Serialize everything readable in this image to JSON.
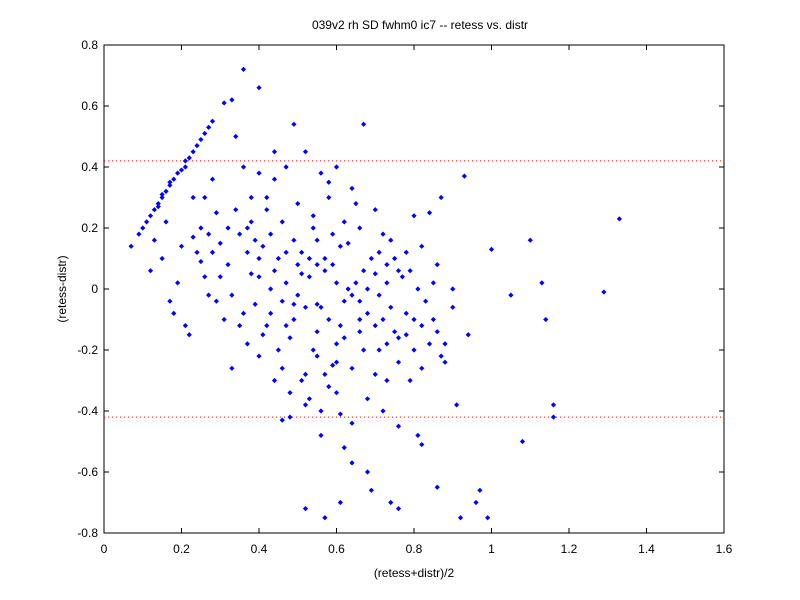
{
  "chart_data": {
    "type": "scatter",
    "title": "039v2 rh SD fwhm0 ic7 -- retess vs. distr",
    "xlabel": "(retess+distr)/2",
    "ylabel": "(retess-distr)",
    "xlim": [
      0,
      1.6
    ],
    "ylim": [
      -0.8,
      0.8
    ],
    "xticks": [
      0,
      0.2,
      0.4,
      0.6,
      0.8,
      1,
      1.2,
      1.4,
      1.6
    ],
    "yticks": [
      -0.8,
      -0.6,
      -0.4,
      -0.2,
      0,
      0.2,
      0.4,
      0.6,
      0.8
    ],
    "xtick_labels": [
      "0",
      "0.2",
      "0.4",
      "0.6",
      "0.8",
      "1",
      "1.2",
      "1.4",
      "1.6"
    ],
    "ytick_labels": [
      "-0.8",
      "-0.6",
      "-0.4",
      "-0.2",
      "0",
      "0.2",
      "0.4",
      "0.6",
      "0.8"
    ],
    "grid": false,
    "marker_color": "#0000ff",
    "reference_line_color": "#ff0000",
    "reference_lines_y": [
      0.42,
      -0.42
    ],
    "series": [
      {
        "points": [
          [
            0.07,
            0.14
          ],
          [
            0.09,
            0.18
          ],
          [
            0.1,
            0.2
          ],
          [
            0.11,
            0.22
          ],
          [
            0.12,
            0.24
          ],
          [
            0.13,
            0.26
          ],
          [
            0.14,
            0.27
          ],
          [
            0.14,
            0.28
          ],
          [
            0.15,
            0.3
          ],
          [
            0.15,
            0.31
          ],
          [
            0.16,
            0.32
          ],
          [
            0.17,
            0.34
          ],
          [
            0.17,
            0.35
          ],
          [
            0.18,
            0.36
          ],
          [
            0.19,
            0.38
          ],
          [
            0.2,
            0.39
          ],
          [
            0.21,
            0.4
          ],
          [
            0.21,
            0.42
          ],
          [
            0.22,
            0.43
          ],
          [
            0.23,
            0.45
          ],
          [
            0.24,
            0.47
          ],
          [
            0.25,
            0.49
          ],
          [
            0.26,
            0.51
          ],
          [
            0.27,
            0.53
          ],
          [
            0.28,
            0.55
          ],
          [
            0.31,
            0.61
          ],
          [
            0.33,
            0.62
          ],
          [
            0.36,
            0.72
          ],
          [
            0.4,
            0.66
          ],
          [
            0.12,
            0.06
          ],
          [
            0.13,
            0.16
          ],
          [
            0.15,
            0.1
          ],
          [
            0.16,
            0.22
          ],
          [
            0.17,
            -0.04
          ],
          [
            0.18,
            -0.08
          ],
          [
            0.19,
            0.02
          ],
          [
            0.2,
            0.14
          ],
          [
            0.21,
            -0.12
          ],
          [
            0.22,
            -0.15
          ],
          [
            0.23,
            0.3
          ],
          [
            0.24,
            0.12
          ],
          [
            0.25,
            0.2
          ],
          [
            0.26,
            0.04
          ],
          [
            0.27,
            -0.02
          ],
          [
            0.28,
            0.36
          ],
          [
            0.29,
            0.25
          ],
          [
            0.3,
            0.15
          ],
          [
            0.31,
            -0.1
          ],
          [
            0.33,
            -0.26
          ],
          [
            0.34,
            0.5
          ],
          [
            0.36,
            0.4
          ],
          [
            0.37,
            0.2
          ],
          [
            0.38,
            0.05
          ],
          [
            0.39,
            -0.05
          ],
          [
            0.4,
            0.1
          ],
          [
            0.41,
            -0.15
          ],
          [
            0.42,
            0.3
          ],
          [
            0.43,
            0.0
          ],
          [
            0.44,
            0.45
          ],
          [
            0.45,
            -0.2
          ],
          [
            0.46,
            -0.43
          ],
          [
            0.47,
            0.12
          ],
          [
            0.48,
            -0.42
          ],
          [
            0.49,
            0.54
          ],
          [
            0.5,
            0.08
          ],
          [
            0.51,
            -0.3
          ],
          [
            0.52,
            0.45
          ],
          [
            0.53,
            -0.36
          ],
          [
            0.54,
            0.2
          ],
          [
            0.55,
            -0.05
          ],
          [
            0.56,
            -0.48
          ],
          [
            0.57,
            0.1
          ],
          [
            0.58,
            0.35
          ],
          [
            0.59,
            -0.25
          ],
          [
            0.6,
            0.02
          ],
          [
            0.61,
            -0.41
          ],
          [
            0.62,
            -0.52
          ],
          [
            0.63,
            0.15
          ],
          [
            0.64,
            -0.57
          ],
          [
            0.65,
            0.28
          ],
          [
            0.66,
            -0.1
          ],
          [
            0.67,
            0.54
          ],
          [
            0.68,
            -0.6
          ],
          [
            0.69,
            -0.66
          ],
          [
            0.7,
            0.05
          ],
          [
            0.71,
            -0.2
          ],
          [
            0.72,
            0.18
          ],
          [
            0.73,
            -0.3
          ],
          [
            0.74,
            -0.7
          ],
          [
            0.75,
            0.1
          ],
          [
            0.76,
            -0.45
          ],
          [
            0.78,
            -0.15
          ],
          [
            0.8,
            0.24
          ],
          [
            0.81,
            -0.48
          ],
          [
            0.82,
            -0.51
          ],
          [
            0.84,
            0.25
          ],
          [
            0.85,
            -0.1
          ],
          [
            0.86,
            -0.65
          ],
          [
            0.87,
            0.3
          ],
          [
            0.88,
            -0.18
          ],
          [
            0.9,
            0.0
          ],
          [
            0.91,
            -0.38
          ],
          [
            0.92,
            -0.75
          ],
          [
            0.93,
            0.37
          ],
          [
            0.94,
            -0.15
          ],
          [
            0.96,
            -0.7
          ],
          [
            0.97,
            -0.66
          ],
          [
            0.99,
            -0.75
          ],
          [
            1.0,
            0.13
          ],
          [
            1.05,
            -0.02
          ],
          [
            1.08,
            -0.5
          ],
          [
            1.1,
            0.16
          ],
          [
            1.13,
            0.02
          ],
          [
            1.14,
            -0.1
          ],
          [
            1.16,
            -0.38
          ],
          [
            1.16,
            -0.42
          ],
          [
            1.29,
            -0.01
          ],
          [
            1.33,
            0.23
          ],
          [
            0.52,
            -0.72
          ],
          [
            0.57,
            -0.75
          ],
          [
            0.61,
            -0.7
          ],
          [
            0.76,
            -0.72
          ],
          [
            0.23,
            0.17
          ],
          [
            0.25,
            0.09
          ],
          [
            0.28,
            0.12
          ],
          [
            0.32,
            0.08
          ],
          [
            0.35,
            0.18
          ],
          [
            0.38,
            0.22
          ],
          [
            0.41,
            0.14
          ],
          [
            0.44,
            0.06
          ],
          [
            0.47,
            0.02
          ],
          [
            0.5,
            -0.02
          ],
          [
            0.53,
            0.04
          ],
          [
            0.56,
            -0.06
          ],
          [
            0.59,
            0.08
          ],
          [
            0.62,
            -0.04
          ],
          [
            0.65,
            0.02
          ],
          [
            0.68,
            -0.08
          ],
          [
            0.71,
            -0.02
          ],
          [
            0.74,
            -0.06
          ],
          [
            0.77,
            0.04
          ],
          [
            0.8,
            -0.1
          ],
          [
            0.83,
            -0.04
          ],
          [
            0.86,
            -0.14
          ],
          [
            0.27,
            0.18
          ],
          [
            0.3,
            0.04
          ],
          [
            0.33,
            -0.02
          ],
          [
            0.36,
            -0.08
          ],
          [
            0.39,
            0.16
          ],
          [
            0.42,
            -0.12
          ],
          [
            0.45,
            0.1
          ],
          [
            0.48,
            -0.16
          ],
          [
            0.51,
            0.12
          ],
          [
            0.54,
            -0.2
          ],
          [
            0.57,
            0.06
          ],
          [
            0.6,
            -0.18
          ],
          [
            0.63,
            0.0
          ],
          [
            0.66,
            -0.14
          ],
          [
            0.69,
            0.1
          ],
          [
            0.72,
            -0.1
          ],
          [
            0.75,
            -0.14
          ],
          [
            0.78,
            -0.08
          ],
          [
            0.81,
            0.0
          ],
          [
            0.84,
            -0.18
          ],
          [
            0.87,
            -0.22
          ],
          [
            0.37,
            -0.18
          ],
          [
            0.4,
            -0.22
          ],
          [
            0.43,
            -0.08
          ],
          [
            0.46,
            -0.26
          ],
          [
            0.49,
            -0.1
          ],
          [
            0.52,
            -0.28
          ],
          [
            0.55,
            -0.14
          ],
          [
            0.58,
            -0.32
          ],
          [
            0.61,
            -0.12
          ],
          [
            0.64,
            -0.26
          ],
          [
            0.67,
            -0.2
          ],
          [
            0.7,
            -0.28
          ],
          [
            0.73,
            -0.18
          ],
          [
            0.76,
            -0.24
          ],
          [
            0.79,
            -0.3
          ],
          [
            0.82,
            -0.26
          ],
          [
            0.34,
            0.26
          ],
          [
            0.38,
            0.3
          ],
          [
            0.42,
            0.26
          ],
          [
            0.46,
            0.22
          ],
          [
            0.5,
            0.28
          ],
          [
            0.54,
            0.24
          ],
          [
            0.58,
            0.3
          ],
          [
            0.62,
            0.22
          ],
          [
            0.66,
            0.2
          ],
          [
            0.7,
            0.26
          ],
          [
            0.74,
            0.16
          ],
          [
            0.78,
            0.12
          ],
          [
            0.82,
            0.14
          ],
          [
            0.86,
            0.08
          ],
          [
            0.9,
            -0.06
          ],
          [
            0.26,
            0.3
          ],
          [
            0.29,
            -0.04
          ],
          [
            0.32,
            0.2
          ],
          [
            0.35,
            -0.12
          ],
          [
            0.37,
            0.12
          ],
          [
            0.4,
            0.04
          ],
          [
            0.43,
            0.18
          ],
          [
            0.46,
            -0.04
          ],
          [
            0.49,
            0.16
          ],
          [
            0.52,
            -0.06
          ],
          [
            0.55,
            0.08
          ],
          [
            0.58,
            -0.1
          ],
          [
            0.61,
            0.14
          ],
          [
            0.64,
            -0.02
          ],
          [
            0.67,
            0.06
          ],
          [
            0.7,
            -0.12
          ],
          [
            0.73,
            0.08
          ],
          [
            0.76,
            -0.16
          ],
          [
            0.79,
            0.06
          ],
          [
            0.82,
            -0.12
          ],
          [
            0.85,
            0.02
          ],
          [
            0.88,
            -0.24
          ],
          [
            0.44,
            -0.3
          ],
          [
            0.48,
            -0.34
          ],
          [
            0.52,
            -0.38
          ],
          [
            0.56,
            -0.4
          ],
          [
            0.6,
            -0.34
          ],
          [
            0.64,
            -0.44
          ],
          [
            0.68,
            -0.36
          ],
          [
            0.72,
            -0.4
          ],
          [
            0.6,
            0.4
          ],
          [
            0.44,
            0.36
          ],
          [
            0.4,
            0.38
          ],
          [
            0.47,
            0.4
          ],
          [
            0.56,
            0.38
          ],
          [
            0.64,
            0.33
          ],
          [
            0.55,
            0.16
          ],
          [
            0.59,
            0.18
          ],
          [
            0.53,
            0.1
          ],
          [
            0.51,
            0.05
          ],
          [
            0.49,
            -0.05
          ],
          [
            0.47,
            -0.12
          ],
          [
            0.55,
            -0.22
          ],
          [
            0.57,
            -0.28
          ],
          [
            0.6,
            -0.24
          ],
          [
            0.62,
            -0.16
          ],
          [
            0.66,
            -0.04
          ],
          [
            0.68,
            0.0
          ],
          [
            0.71,
            0.12
          ],
          [
            0.73,
            0.02
          ],
          [
            0.76,
            0.06
          ],
          [
            0.8,
            -0.2
          ]
        ]
      }
    ]
  }
}
